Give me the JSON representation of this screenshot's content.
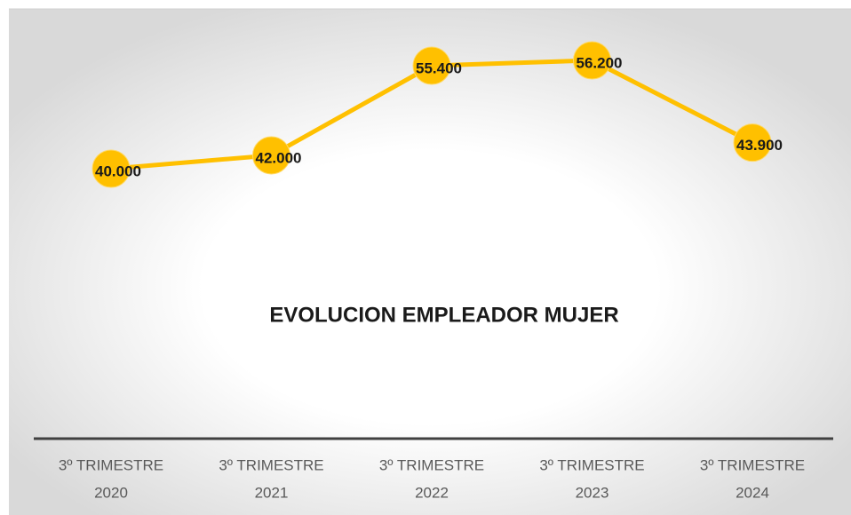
{
  "chart_data": {
    "type": "line",
    "title": "EVOLUCION EMPLEADOR MUJER",
    "categories": [
      [
        "3º TRIMESTRE",
        "2020"
      ],
      [
        "3º TRIMESTRE",
        "2021"
      ],
      [
        "3º TRIMESTRE",
        "2022"
      ],
      [
        "3º TRIMESTRE",
        "2023"
      ],
      [
        "3º TRIMESTRE",
        "2024"
      ]
    ],
    "series": [
      {
        "color": "#ffc000",
        "values": [
          40000,
          42000,
          55400,
          56200,
          43900
        ],
        "value_labels": [
          "40.000",
          "42.000",
          "55.400",
          "56.200",
          "43.900"
        ]
      }
    ]
  }
}
